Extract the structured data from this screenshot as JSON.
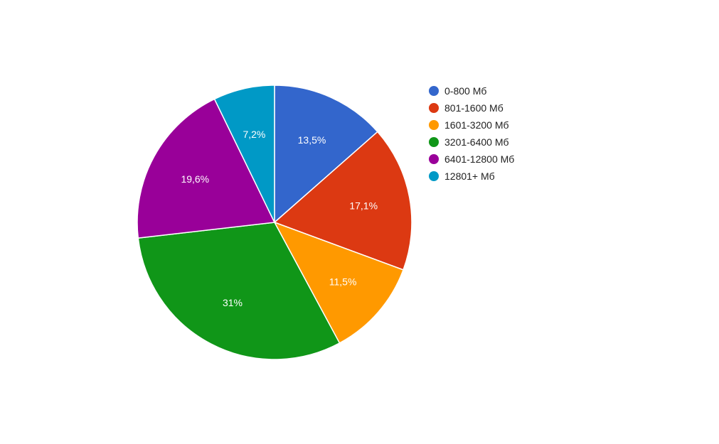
{
  "chart_data": {
    "type": "pie",
    "legend_position": "right",
    "start_angle_deg": 0,
    "direction": "clockwise",
    "slices": [
      {
        "label": "0-800 Мб",
        "value": 13.5,
        "value_label": "13,5%",
        "color": "#3366cc"
      },
      {
        "label": "801-1600 Мб",
        "value": 17.1,
        "value_label": "17,1%",
        "color": "#dc3912"
      },
      {
        "label": "1601-3200 Мб",
        "value": 11.5,
        "value_label": "11,5%",
        "color": "#ff9900"
      },
      {
        "label": "3201-6400 Мб",
        "value": 31,
        "value_label": "31%",
        "color": "#109618"
      },
      {
        "label": "6401-12800 Мб",
        "value": 19.6,
        "value_label": "19,6%",
        "color": "#990099"
      },
      {
        "label": "12801+ Мб",
        "value": 7.2,
        "value_label": "7,2%",
        "color": "#0099c6"
      }
    ]
  }
}
